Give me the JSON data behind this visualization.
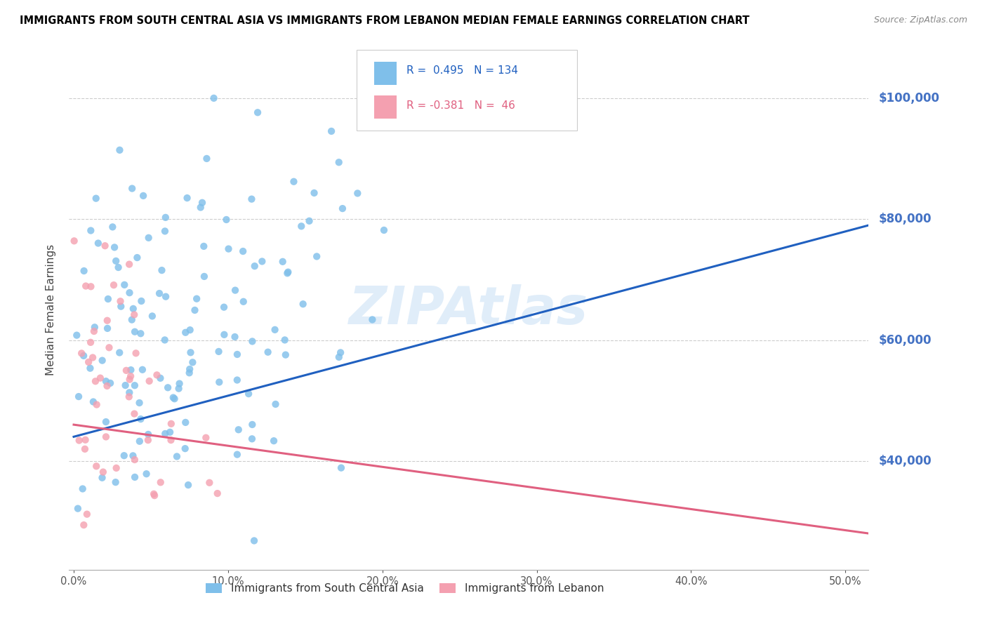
{
  "title": "IMMIGRANTS FROM SOUTH CENTRAL ASIA VS IMMIGRANTS FROM LEBANON MEDIAN FEMALE EARNINGS CORRELATION CHART",
  "source": "Source: ZipAtlas.com",
  "ylabel": "Median Female Earnings",
  "y_ticks": [
    40000,
    60000,
    80000,
    100000
  ],
  "y_tick_labels": [
    "$40,000",
    "$60,000",
    "$80,000",
    "$100,000"
  ],
  "y_min": 22000,
  "y_max": 108000,
  "x_min": -0.003,
  "x_max": 0.515,
  "blue_R": 0.495,
  "blue_N": 134,
  "pink_R": -0.381,
  "pink_N": 46,
  "blue_color": "#7fbfea",
  "pink_color": "#f4a0b0",
  "blue_line_color": "#2060c0",
  "pink_line_color": "#e06080",
  "legend_blue_label": "Immigrants from South Central Asia",
  "legend_pink_label": "Immigrants from Lebanon",
  "watermark": "ZIPAtlas",
  "blue_line_x0": 0.0,
  "blue_line_x1": 0.515,
  "blue_line_y0": 44000,
  "blue_line_y1": 79000,
  "pink_line_x0": 0.0,
  "pink_line_x1": 0.515,
  "pink_line_y0": 46000,
  "pink_line_y1": 28000
}
